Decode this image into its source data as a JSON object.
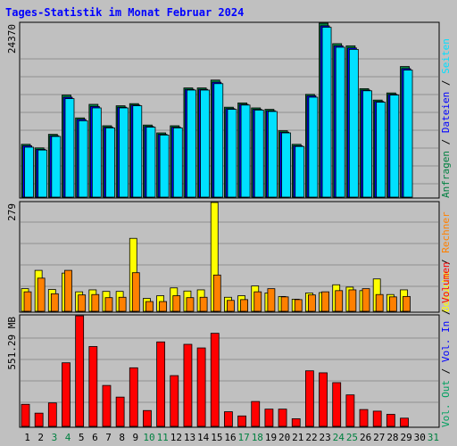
{
  "chart_data": {
    "type": "bar",
    "title": "Tages-Statistik im Monat Februar 2024",
    "days": [
      1,
      2,
      3,
      4,
      5,
      6,
      7,
      8,
      9,
      10,
      11,
      12,
      13,
      14,
      15,
      16,
      17,
      18,
      19,
      20,
      21,
      22,
      23,
      24,
      25,
      26,
      27,
      28,
      29,
      30,
      31
    ],
    "weekend_days": [
      3,
      4,
      10,
      11,
      17,
      18,
      24,
      25,
      31
    ],
    "panels": {
      "top": {
        "max_label": "24370",
        "ymax": 24370,
        "right_labels": [
          {
            "text": "Anfragen",
            "color": "#008040"
          },
          {
            "text": "Dateien",
            "color": "#0000ff"
          },
          {
            "text": "Seiten",
            "color": "#00e0ff"
          }
        ],
        "series": [
          {
            "name": "Anfragen",
            "color": "#008040",
            "values": [
              7400,
              6900,
              8800,
              14300,
              11100,
              13000,
              10000,
              12800,
              13100,
              10100,
              9000,
              10000,
              15300,
              15300,
              16400,
              12600,
              13200,
              12500,
              12300,
              9300,
              7400,
              14400,
              24370,
              21500,
              21200,
              15200,
              13600,
              14600,
              18300,
              0,
              0
            ]
          },
          {
            "name": "Dateien",
            "color": "#0000ff",
            "values": [
              7200,
              6700,
              8600,
              14000,
              10900,
              12700,
              9800,
              12600,
              12900,
              9900,
              8800,
              9800,
              15100,
              15100,
              16100,
              12400,
              13000,
              12300,
              12100,
              9100,
              7200,
              14200,
              24000,
              21200,
              20900,
              15000,
              13400,
              14400,
              18000,
              0,
              0
            ]
          },
          {
            "name": "Seiten",
            "color": "#00e0ff",
            "values": [
              7000,
              6600,
              8500,
              13800,
              10700,
              12500,
              9700,
              12500,
              12800,
              9800,
              8700,
              9700,
              15000,
              15000,
              15900,
              12300,
              12900,
              12200,
              12000,
              9000,
              7100,
              14000,
              23800,
              21000,
              20700,
              14900,
              13300,
              14300,
              17800,
              0,
              0
            ]
          }
        ]
      },
      "middle": {
        "max_label": "279",
        "ymax": 279,
        "right_labels": [
          {
            "text": "Besuche",
            "color": "#ffff00"
          },
          {
            "text": "Rechner",
            "color": "#ff8000"
          }
        ],
        "series": [
          {
            "name": "Besuche",
            "color": "#ffff00",
            "values": [
              58,
              105,
              56,
              98,
              50,
              55,
              51,
              51,
              187,
              33,
              40,
              60,
              52,
              55,
              279,
              36,
              40,
              65,
              47,
              38,
              31,
              47,
              48,
              68,
              62,
              53,
              83,
              43,
              55,
              0,
              0
            ]
          },
          {
            "name": "Rechner",
            "color": "#ff8000",
            "values": [
              50,
              85,
              45,
              105,
              42,
              43,
              35,
              36,
              99,
              25,
              25,
              40,
              35,
              36,
              93,
              28,
              30,
              50,
              58,
              37,
              30,
              42,
              50,
              53,
              55,
              58,
              43,
              37,
              38,
              0,
              0
            ]
          }
        ]
      },
      "bottom": {
        "max_label": "551.29 MB",
        "ymax": 551.29,
        "right_labels": [
          {
            "text": "Vol. Out",
            "color": "#00a060"
          },
          {
            "text": "Vol. In",
            "color": "#0000ff"
          },
          {
            "text": "Volumen",
            "color": "#ff0000"
          }
        ],
        "series": [
          {
            "name": "Volumen",
            "color": "#ff0000",
            "values": [
              110,
              66,
              117,
              317,
              551,
              398,
              204,
              146,
              292,
              79,
              421,
              253,
              409,
              391,
              464,
              73,
              52,
              124,
              86,
              86,
              38,
              277,
              267,
              218,
              157,
              84,
              76,
              60,
              41,
              0,
              0
            ]
          }
        ]
      }
    }
  }
}
